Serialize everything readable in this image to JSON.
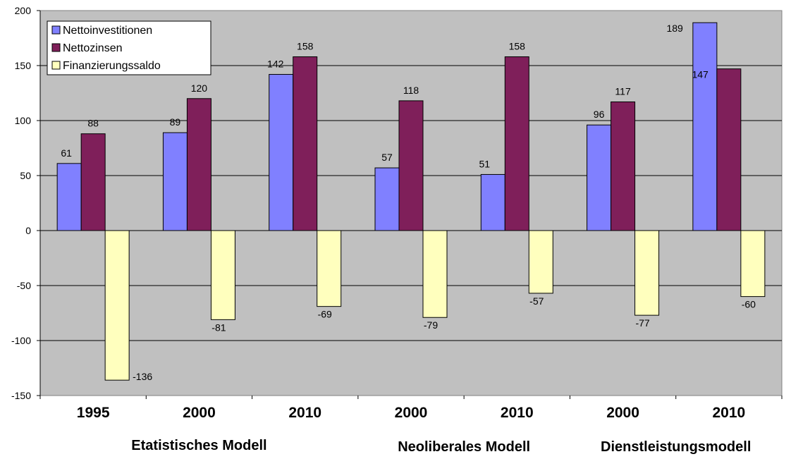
{
  "chart_data": {
    "type": "bar",
    "categories": [
      "1995",
      "2000",
      "2010",
      "2000",
      "2010",
      "2000",
      "2010"
    ],
    "groups": [
      {
        "label": "Etatistisches Modell",
        "from": 0,
        "to": 2
      },
      {
        "label": "Neoliberales Modell",
        "from": 3,
        "to": 4
      },
      {
        "label": "Dienstleistungsmodell",
        "from": 5,
        "to": 6
      }
    ],
    "series": [
      {
        "name": "Nettoinvestitionen",
        "color": "#8080ff",
        "values": [
          61,
          89,
          142,
          57,
          51,
          96,
          189
        ]
      },
      {
        "name": "Nettozinsen",
        "color": "#7f1f5a",
        "values": [
          88,
          120,
          158,
          118,
          158,
          117,
          147
        ]
      },
      {
        "name": "Finanzierungssaldo",
        "color": "#ffffbe",
        "values": [
          -136,
          -81,
          -69,
          -79,
          -57,
          -77,
          -60
        ]
      }
    ],
    "ylim": [
      -150,
      200
    ],
    "yticks": [
      "200",
      "150",
      "100",
      "50",
      "0",
      "-50",
      "-100",
      "-150"
    ],
    "grid": true,
    "legend_position": "top-left",
    "plot_background": "#c0c0c0"
  }
}
